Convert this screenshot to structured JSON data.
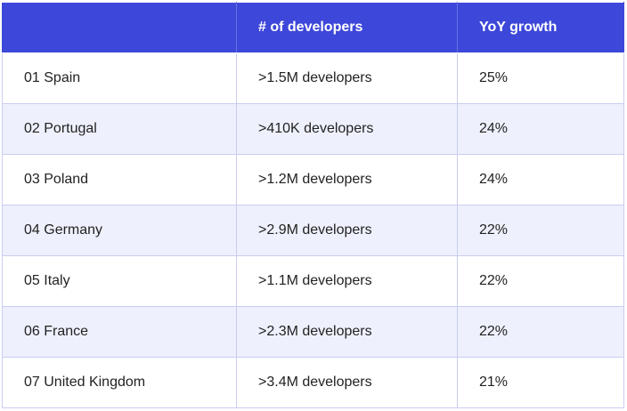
{
  "table": {
    "headers": [
      "",
      "# of developers",
      "YoY growth"
    ],
    "rows": [
      {
        "country": "01 Spain",
        "developers": ">1.5M developers",
        "growth": "25%"
      },
      {
        "country": "02 Portugal",
        "developers": ">410K developers",
        "growth": "24%"
      },
      {
        "country": "03 Poland",
        "developers": ">1.2M developers",
        "growth": "24%"
      },
      {
        "country": "04 Germany",
        "developers": ">2.9M developers",
        "growth": "22%"
      },
      {
        "country": "05 Italy",
        "developers": ">1.1M developers",
        "growth": "22%"
      },
      {
        "country": "06 France",
        "developers": ">2.3M developers",
        "growth": "22%"
      },
      {
        "country": "07 United Kingdom",
        "developers": ">3.4M developers",
        "growth": "21%"
      }
    ]
  },
  "colors": {
    "header_bg": "#3d47d9",
    "header_text": "#ffffff",
    "alt_row_bg": "#eef1fd",
    "border": "#c9cdf0"
  }
}
